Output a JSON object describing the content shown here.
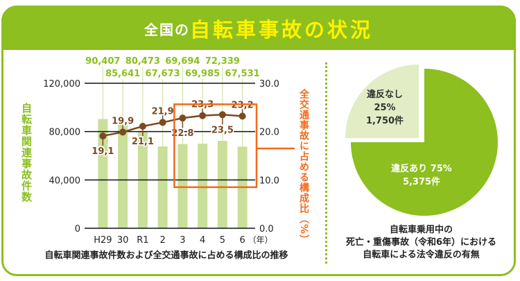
{
  "header": {
    "prefix": "全国の",
    "title": "自転車事故の状況"
  },
  "colors": {
    "brand": "#8cbf1f",
    "bar": "#c9df9a",
    "bar_label": "#8cbf1f",
    "line": "#7b4a21",
    "highlight": "#f26a1b",
    "pie_main": "#8cbf1f",
    "pie_minor": "#e2ecc5"
  },
  "chart_data": [
    {
      "type": "bar+line",
      "title": "自転車関連事故件数および全交通事故に占める構成比の推移",
      "categories": [
        "H29",
        "30",
        "R1",
        "2",
        "3",
        "4",
        "5",
        "6"
      ],
      "x_unit": "（年）",
      "ylabel_left": "自転車関連事故件数",
      "ylabel_right": "全交通事故に占める構成比（%）",
      "yticks_left": [
        "0",
        "40,000",
        "80,000",
        "120,000"
      ],
      "yticks_right": [
        "0.0",
        "10.0",
        "20.0",
        "30.0"
      ],
      "ylim_left": [
        0,
        120000
      ],
      "ylim_right": [
        0,
        30
      ],
      "grid": true,
      "series": [
        {
          "kind": "bar",
          "axis": "left",
          "values": [
            90407,
            85641,
            80473,
            67673,
            69694,
            69985,
            72339,
            67531
          ],
          "labels": [
            "90,407",
            "85,641",
            "80,473",
            "67,673",
            "69,694",
            "69,985",
            "72,339",
            "67,531"
          ]
        },
        {
          "kind": "line",
          "axis": "right",
          "values": [
            19.1,
            19.9,
            21.1,
            21.9,
            22.8,
            23.3,
            23.5,
            23.2
          ],
          "labels": [
            "19,1",
            "19,9",
            "21,1",
            "21,9",
            "22.8",
            "23,3",
            "23,5",
            "23,2"
          ]
        }
      ],
      "highlight_range": [
        "3",
        "6"
      ]
    },
    {
      "type": "pie",
      "title": "自転車乗用中の死亡・重傷事故（令和6年）における自転車による法令違反の有無",
      "title_lines": [
        "自転車乗用中の",
        "死亡・重傷事故（令和6年）における",
        "自転車による法令違反の有無"
      ],
      "slices": [
        {
          "name": "違反あり",
          "percent": 75,
          "count": 5375,
          "label1": "違反あり 75%",
          "label2": "5,375件"
        },
        {
          "name": "違反なし",
          "percent": 25,
          "count": 1750,
          "label1": "違反なし",
          "label2": "25%",
          "label3": "1,750件"
        }
      ]
    }
  ]
}
